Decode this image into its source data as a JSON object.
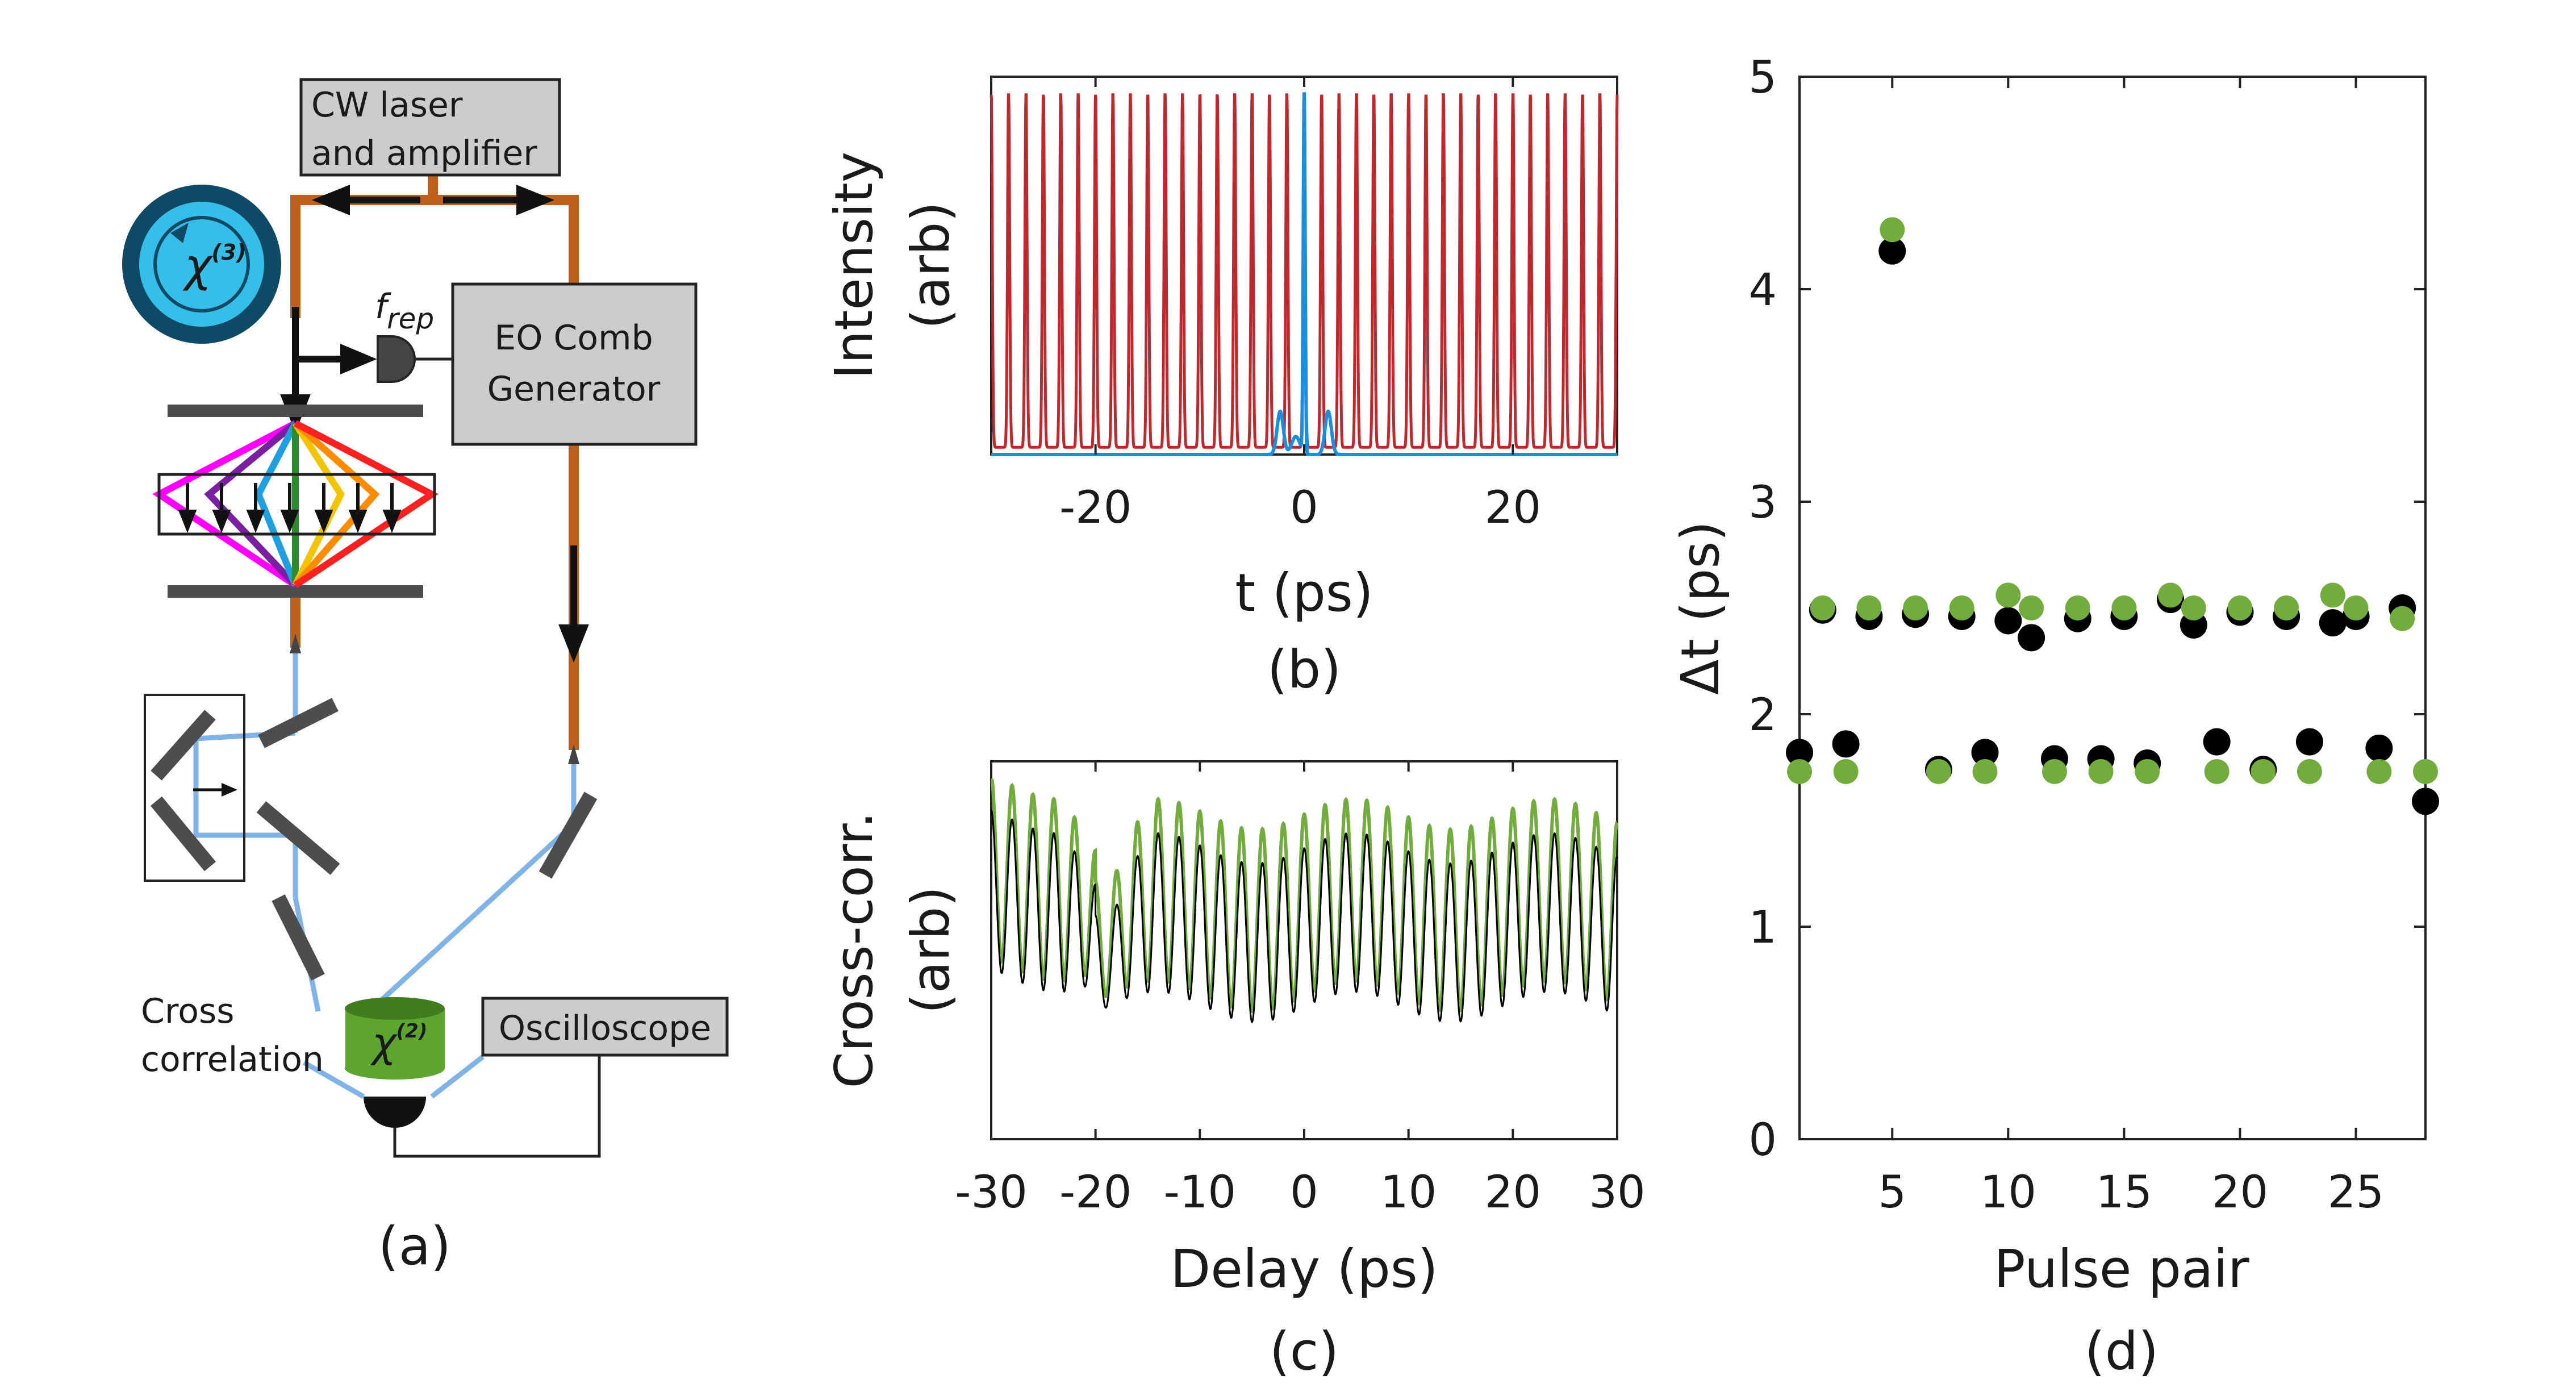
{
  "panel_a": {
    "label": "(a)",
    "laser_box_line1": "CW laser",
    "laser_box_line2": "and amplifier",
    "comb_box_line1": "EO Comb",
    "comb_box_line2": "Generator",
    "frep_label_main": "f",
    "frep_label_sub": "rep",
    "chi3_label": "χ",
    "chi3_sup": "(3)",
    "chi2_label": "χ",
    "chi2_sup": "(2)",
    "cross_line1": "Cross",
    "cross_line2": "correlation",
    "osc_box": "Oscilloscope"
  },
  "colors": {
    "fiber": "#c0601d",
    "free_space": "#80b4e8",
    "mirror": "#4d4d4d",
    "box": "#cccccc",
    "ring_outer": "#0e4a66",
    "ring_inner": "#35bfe8",
    "chi2": "#5ea52f",
    "red_trace": "#c0282d",
    "blue_trace": "#1a8fe0",
    "green_trace": "#72ac3c",
    "black_trace": "#000000"
  },
  "chart_data": [
    {
      "panel": "(b)",
      "type": "line",
      "xlabel": "t (ps)",
      "ylabel_line1": "Intensity",
      "ylabel_line2": "(arb)",
      "xlim": [
        -30,
        30
      ],
      "ylim": [
        0,
        1.05
      ],
      "xticks": [
        -20,
        0,
        20
      ],
      "series": [
        {
          "color": "red",
          "period_ps": 1.667,
          "offset_ps": -30,
          "peak": 1.0,
          "description_pulse_width_ps": 0.24
        },
        {
          "color": "blue",
          "peak_at_ps": 0,
          "peak": 1.0,
          "side_lobes_ps": [
            -2.3,
            2.3
          ],
          "side_lobe_height": 0.12
        }
      ]
    },
    {
      "panel": "(c)",
      "type": "line",
      "xlabel": "Delay (ps)",
      "ylabel_line1": "Cross-corr.",
      "ylabel_line2": "(arb)",
      "xlim": [
        -30,
        30
      ],
      "xticks": [
        -30,
        -20,
        -10,
        0,
        10,
        20,
        30
      ],
      "xticklabels": [
        "-30",
        "-20",
        "-10",
        "0",
        "10",
        "20",
        "30"
      ],
      "series": [
        {
          "color": "green",
          "period_ps": 2.0
        },
        {
          "color": "black",
          "period_ps": 2.0
        }
      ]
    },
    {
      "panel": "(d)",
      "type": "scatter",
      "xlabel": "Pulse pair",
      "ylabel": "Δt (ps)",
      "xlim": [
        1,
        28
      ],
      "ylim": [
        0,
        5
      ],
      "xticks": [
        5,
        10,
        15,
        20,
        25
      ],
      "yticks": [
        0,
        1,
        2,
        3,
        4,
        5
      ],
      "series": [
        {
          "color": "black",
          "points": [
            [
              1,
              1.82
            ],
            [
              2,
              2.49
            ],
            [
              3,
              1.86
            ],
            [
              4,
              2.46
            ],
            [
              5,
              4.18
            ],
            [
              6,
              2.47
            ],
            [
              7,
              1.74
            ],
            [
              8,
              2.46
            ],
            [
              9,
              1.82
            ],
            [
              10,
              2.44
            ],
            [
              11,
              2.36
            ],
            [
              12,
              1.79
            ],
            [
              13,
              2.45
            ],
            [
              14,
              1.79
            ],
            [
              15,
              2.46
            ],
            [
              16,
              1.77
            ],
            [
              17,
              2.54
            ],
            [
              18,
              2.42
            ],
            [
              19,
              1.87
            ],
            [
              20,
              2.48
            ],
            [
              21,
              1.74
            ],
            [
              22,
              2.46
            ],
            [
              23,
              1.87
            ],
            [
              24,
              2.43
            ],
            [
              25,
              2.46
            ],
            [
              26,
              1.84
            ],
            [
              27,
              2.5
            ],
            [
              28,
              1.59
            ]
          ]
        },
        {
          "color": "green",
          "points": [
            [
              1,
              1.73
            ],
            [
              2,
              2.5
            ],
            [
              3,
              1.73
            ],
            [
              4,
              2.5
            ],
            [
              5,
              4.28
            ],
            [
              6,
              2.5
            ],
            [
              7,
              1.73
            ],
            [
              8,
              2.5
            ],
            [
              9,
              1.73
            ],
            [
              10,
              2.56
            ],
            [
              11,
              2.5
            ],
            [
              12,
              1.73
            ],
            [
              13,
              2.5
            ],
            [
              14,
              1.73
            ],
            [
              15,
              2.5
            ],
            [
              16,
              1.73
            ],
            [
              17,
              2.56
            ],
            [
              18,
              2.5
            ],
            [
              19,
              1.73
            ],
            [
              20,
              2.5
            ],
            [
              21,
              1.73
            ],
            [
              22,
              2.5
            ],
            [
              23,
              1.73
            ],
            [
              24,
              2.56
            ],
            [
              25,
              2.5
            ],
            [
              26,
              1.73
            ],
            [
              27,
              2.45
            ],
            [
              28,
              1.73
            ]
          ]
        }
      ]
    }
  ]
}
